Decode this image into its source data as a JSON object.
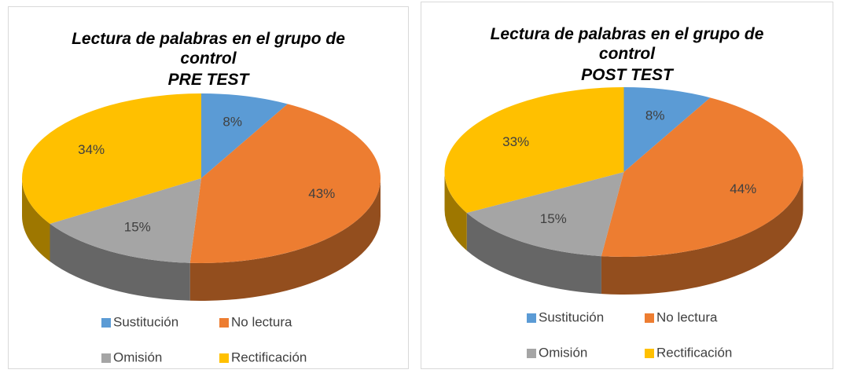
{
  "chart_data": [
    {
      "type": "pie3d",
      "title": "Lectura de palabras en el grupo de control",
      "subtitle": "PRE TEST",
      "categories": [
        "Sustitución",
        "No lectura",
        "Omisión",
        "Rectificación"
      ],
      "values": [
        8,
        43,
        15,
        34
      ],
      "value_labels": [
        "8%",
        "43%",
        "15%",
        "34%"
      ],
      "colors": [
        "#5b9bd5",
        "#ed7d31",
        "#a5a5a5",
        "#ffc000"
      ],
      "legend": "bottom"
    },
    {
      "type": "pie3d",
      "title": "Lectura de palabras en el grupo de control",
      "subtitle": "POST TEST",
      "categories": [
        "Sustitución",
        "No lectura",
        "Omisión",
        "Rectificación"
      ],
      "values": [
        8,
        44,
        15,
        33
      ],
      "value_labels": [
        "8%",
        "44%",
        "15%",
        "33%"
      ],
      "colors": [
        "#5b9bd5",
        "#ed7d31",
        "#a5a5a5",
        "#ffc000"
      ],
      "legend": "bottom"
    }
  ]
}
